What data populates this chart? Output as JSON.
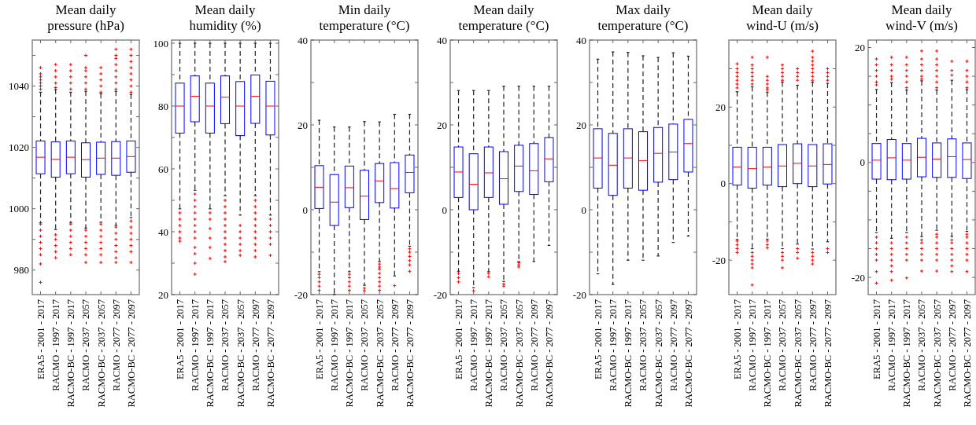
{
  "chart_data": [
    {
      "type": "box",
      "title": "Mean daily\npressure (hPa)",
      "categories": [
        "ERA5 - 2001 - 2017",
        "RACMO - 1997 - 2017",
        "RACMO-BC - 1997 - 2017",
        "RACMO - 2037 - 2057",
        "RACMO-BC - 2037 - 2057",
        "RACMO - 2077 - 2097",
        "RACMO-BC - 2077 - 2097"
      ],
      "color": "#0000ff",
      "marker": "cross",
      "ylim": [
        972,
        1055
      ],
      "yticks": [
        980,
        {
          "value": 990,
          "label": null
        },
        1000,
        {
          "value": 1010,
          "label": null
        },
        1020,
        {
          "value": 1030,
          "label": null
        },
        1040,
        {
          "value": 1050,
          "label": null
        }
      ],
      "boxes": [
        {
          "low": 995.4,
          "q1": 1011.4,
          "median": 1016.8,
          "q3": 1022.1,
          "high": 1038,
          "outliers": [
            1039,
            1040,
            1041,
            1042,
            1043,
            1044,
            1046,
            995,
            993,
            991,
            989,
            987,
            985,
            982,
            976
          ]
        },
        {
          "low": 993.2,
          "q1": 1010.3,
          "median": 1016.1,
          "q3": 1021.8,
          "high": 1038.9,
          "outliers": [
            1039.5,
            1041,
            1043,
            1045,
            1047,
            991.5,
            990,
            988,
            986,
            984
          ]
        },
        {
          "low": 995.4,
          "q1": 1011.4,
          "median": 1016.8,
          "q3": 1022.1,
          "high": 1038,
          "outliers": [
            1039,
            1041,
            1043,
            1045,
            1047,
            995,
            993,
            991,
            989,
            987,
            985
          ]
        },
        {
          "low": 993.7,
          "q1": 1010.3,
          "median": 1016,
          "q3": 1021.5,
          "high": 1038.3,
          "outliers": [
            1039,
            1041,
            1043,
            1045,
            1046,
            1050,
            993,
            991,
            989,
            987,
            985,
            982.5
          ]
        },
        {
          "low": 995.6,
          "q1": 1011.2,
          "median": 1016.5,
          "q3": 1021.7,
          "high": 1037.5,
          "outliers": [
            1038,
            1040,
            1042,
            1044,
            1046,
            995,
            993,
            991,
            989,
            987,
            985,
            982.5
          ]
        },
        {
          "low": 994.6,
          "q1": 1010.9,
          "median": 1016.5,
          "q3": 1021.9,
          "high": 1038.3,
          "outliers": [
            1039,
            1041,
            1043,
            1045,
            1047,
            1049,
            1050,
            1052,
            994,
            992,
            990,
            988,
            986,
            984,
            982.5
          ]
        },
        {
          "low": 997.1,
          "q1": 1011.9,
          "median": 1017,
          "q3": 1022.1,
          "high": 1037.3,
          "outliers": [
            1038,
            1040,
            1042,
            1044,
            1046,
            1048,
            1050,
            1052,
            996,
            994,
            992,
            990,
            988,
            986,
            982.5
          ]
        }
      ]
    },
    {
      "type": "box",
      "title": "Mean daily\nhumidity (%)",
      "categories": [
        "ERA5 - 2001 - 2017",
        "RACMO - 1997 - 2017",
        "RACMO-BC - 1997 - 2017",
        "RACMO - 2037 - 2057",
        "RACMO-BC - 2037 - 2057",
        "RACMO - 2077 - 2097",
        "RACMO-BC - 2077 - 2097"
      ],
      "color": "#0000ff",
      "marker": "cross",
      "ylim": [
        20,
        101
      ],
      "yticks": [
        20,
        {
          "value": 30,
          "label": null
        },
        40,
        {
          "value": 50,
          "label": null
        },
        60,
        {
          "value": 70,
          "label": null
        },
        80,
        {
          "value": 90,
          "label": null
        },
        100
      ],
      "boxes": [
        {
          "low": 47.3,
          "q1": 71.4,
          "median": 80,
          "q3": 87.3,
          "high": 100,
          "outliers": [
            46,
            44,
            42,
            40,
            38,
            37
          ]
        },
        {
          "low": 53.2,
          "q1": 75,
          "median": 83.1,
          "q3": 89.6,
          "high": 100,
          "outliers": [
            52,
            50,
            48,
            46,
            44,
            42,
            40,
            38,
            35,
            33,
            30,
            26.5
          ]
        },
        {
          "low": 47.3,
          "q1": 71.4,
          "median": 80,
          "q3": 87.3,
          "high": 100,
          "outliers": [
            46,
            44,
            41,
            38,
            35,
            31.5
          ]
        },
        {
          "low": 51.5,
          "q1": 74.4,
          "median": 82.8,
          "q3": 89.6,
          "high": 100,
          "outliers": [
            50,
            48,
            46,
            44,
            42,
            40,
            38,
            36,
            34,
            32,
            30.5
          ]
        },
        {
          "low": 45.3,
          "q1": 70.6,
          "median": 80,
          "q3": 87.8,
          "high": 100,
          "outliers": [
            42,
            40,
            38,
            36,
            34,
            32.5
          ]
        },
        {
          "low": 51.5,
          "q1": 74.5,
          "median": 83.1,
          "q3": 89.9,
          "high": 100,
          "outliers": [
            50,
            48,
            46,
            44,
            42,
            40,
            38,
            36,
            34,
            32
          ]
        },
        {
          "low": 45.3,
          "q1": 70.8,
          "median": 80,
          "q3": 87.9,
          "high": 100,
          "outliers": [
            44,
            42,
            40,
            38,
            36,
            32.5
          ]
        }
      ]
    },
    {
      "type": "box",
      "title": "Min daily\ntemperature (°C)",
      "categories": [
        "ERA5 - 2001 - 2017",
        "RACMO - 1997 - 2017",
        "RACMO-BC - 1997 - 2017",
        "RACMO - 2037 - 2057",
        "RACMO-BC - 2037 - 2057",
        "RACMO - 2077 - 2097",
        "RACMO-BC - 2077 - 2097"
      ],
      "color": "#0000ff",
      "marker": "cross",
      "ylim": [
        -20,
        40
      ],
      "yticks": [
        -20,
        {
          "value": -10,
          "label": null
        },
        0,
        {
          "value": 10,
          "label": null
        },
        20,
        {
          "value": 30,
          "label": null
        },
        40
      ],
      "boxes": [
        {
          "low": -14.6,
          "q1": 0.3,
          "median": 5.3,
          "q3": 10.4,
          "high": 21.1,
          "outliers": [
            -15.2,
            -16,
            -17,
            -18,
            -19
          ]
        },
        {
          "low": -20,
          "q1": -3.7,
          "median": 1.8,
          "q3": 8.3,
          "high": 19.5
        },
        {
          "low": -14.6,
          "q1": 0.5,
          "median": 5.2,
          "q3": 10.3,
          "high": 19.5,
          "outliers": [
            -15.2,
            -16,
            -17,
            -18,
            -19
          ]
        },
        {
          "low": -17.8,
          "q1": -2.3,
          "median": 3.2,
          "q3": 9.3,
          "high": 20.8,
          "outliers": [
            -18.5,
            -19.1
          ]
        },
        {
          "low": -12.2,
          "q1": 1.7,
          "median": 6.8,
          "q3": 10.9,
          "high": 20.7,
          "outliers": [
            -12.8,
            -13.5,
            -14,
            -15,
            -16,
            -17,
            -18,
            -19
          ]
        },
        {
          "low": -15.6,
          "q1": 0.4,
          "median": 5,
          "q3": 11.1,
          "high": 22.5,
          "outliers": [
            -17.9
          ]
        },
        {
          "low": -8.6,
          "q1": 4,
          "median": 8.8,
          "q3": 12.9,
          "high": 22.5,
          "outliers": [
            -9.2,
            -10,
            -11,
            -12,
            -13,
            -14.5
          ]
        }
      ]
    },
    {
      "type": "box",
      "title": "Mean daily\ntemperature (°C)",
      "categories": [
        "ERA5 - 2001 - 2017",
        "RACMO - 1997 - 2017",
        "RACMO-BC - 1997 - 2017",
        "RACMO - 2037 - 2057",
        "RACMO-BC - 2037 - 2057",
        "RACMO - 2077 - 2097",
        "RACMO-BC - 2077 - 2097"
      ],
      "color": "#0000ff",
      "marker": "cross",
      "ylim": [
        -20,
        40
      ],
      "yticks": [
        -20,
        {
          "value": -10,
          "label": null
        },
        0,
        {
          "value": 10,
          "label": null
        },
        20,
        {
          "value": 30,
          "label": null
        },
        40
      ],
      "boxes": [
        {
          "low": -14.5,
          "q1": 2.9,
          "median": 8.9,
          "q3": 14.8,
          "high": 28.1,
          "outliers": [
            -15,
            -16,
            -17
          ]
        },
        {
          "low": -18.4,
          "q1": 0,
          "median": 6,
          "q3": 13.2,
          "high": 28.1,
          "outliers": [
            -19.1
          ]
        },
        {
          "low": -14.6,
          "q1": 2.9,
          "median": 8.7,
          "q3": 14.8,
          "high": 28.1,
          "outliers": [
            -15,
            -15.8
          ]
        },
        {
          "low": -16.9,
          "q1": 1.3,
          "median": 7.3,
          "q3": 13.7,
          "high": 29.1,
          "outliers": [
            -17.5,
            -18
          ]
        },
        {
          "low": -12.2,
          "q1": 4.3,
          "median": 10.3,
          "q3": 15.2,
          "high": 29.1,
          "outliers": [
            -12.5,
            -13,
            -13.5
          ]
        },
        {
          "low": -12.2,
          "q1": 3.6,
          "median": 9.2,
          "q3": 15.6,
          "high": 29.1
        },
        {
          "low": -8.4,
          "q1": 6.6,
          "median": 12,
          "q3": 17,
          "high": 29.1
        }
      ]
    },
    {
      "type": "box",
      "title": "Max daily\ntemperature (°C)",
      "categories": [
        "ERA5 - 2001 - 2017",
        "RACMO - 1997 - 2017",
        "RACMO-BC - 1997 - 2017",
        "RACMO - 2037 - 2057",
        "RACMO-BC - 2037 - 2057",
        "RACMO - 2077 - 2097",
        "RACMO-BC - 2077 - 2097"
      ],
      "color": "#0000ff",
      "marker": "cross",
      "ylim": [
        -20,
        40
      ],
      "yticks": [
        -20,
        {
          "value": -10,
          "label": null
        },
        0,
        {
          "value": 10,
          "label": null
        },
        20,
        {
          "value": 30,
          "label": null
        },
        40
      ],
      "boxes": [
        {
          "low": -15.1,
          "q1": 5.1,
          "median": 12.2,
          "q3": 19.1,
          "high": 35.5
        },
        {
          "low": -17.6,
          "q1": 3.4,
          "median": 10.5,
          "q3": 18,
          "high": 37.2
        },
        {
          "low": -11.9,
          "q1": 5.1,
          "median": 12.2,
          "q3": 19.1,
          "high": 37.1
        },
        {
          "low": -11.9,
          "q1": 4.6,
          "median": 11.6,
          "q3": 18.4,
          "high": 36.3
        },
        {
          "low": -10.9,
          "q1": 6.5,
          "median": 13.3,
          "q3": 19.4,
          "high": 35.9
        },
        {
          "low": -7.7,
          "q1": 7.1,
          "median": 13.6,
          "q3": 20.2,
          "high": 37
        },
        {
          "low": -6.2,
          "q1": 8.9,
          "median": 15.6,
          "q3": 21.3,
          "high": 36.2
        }
      ]
    },
    {
      "type": "box",
      "title": "Mean daily\nwind-U (m/s)",
      "categories": [
        "ERA5 - 2001 - 2017",
        "RACMO - 1997 - 2017",
        "RACMO-BC - 1997 - 2017",
        "RACMO - 2037 - 2057",
        "RACMO-BC - 2037 - 2057",
        "RACMO - 2077 - 2097",
        "RACMO-BC - 2077 - 2097"
      ],
      "color": "#0000ff",
      "marker": "cross",
      "ylim": [
        -29,
        37.5
      ],
      "yticks": [
        -20,
        {
          "value": -10,
          "label": null
        },
        0,
        {
          "value": 10,
          "label": null
        },
        20,
        {
          "value": 30,
          "label": null
        }
      ],
      "boxes": [
        {
          "low": -14.6,
          "q1": -0.4,
          "median": 4.3,
          "q3": 9.5,
          "high": 24,
          "outliers": [
            25,
            26,
            27,
            28,
            29,
            30,
            31.3,
            -15,
            -16,
            -17,
            -18
          ]
        },
        {
          "low": -17,
          "q1": -1.2,
          "median": 3.9,
          "q3": 9.5,
          "high": 25.3,
          "outliers": [
            26,
            27,
            28,
            29,
            30,
            31,
            33,
            -18,
            -19,
            -20,
            -21,
            -22,
            -26.5
          ]
        },
        {
          "low": -14.5,
          "q1": -0.4,
          "median": 4.3,
          "q3": 9.5,
          "high": 23.9,
          "outliers": [
            24.5,
            25,
            26,
            27,
            28,
            33,
            -15,
            -16,
            -16.8
          ]
        },
        {
          "low": -17,
          "q1": -0.8,
          "median": 4.6,
          "q3": 10.2,
          "high": 26.5,
          "outliers": [
            27,
            28,
            29,
            30,
            31,
            -18,
            -19,
            -20,
            -22
          ]
        },
        {
          "low": -15.8,
          "q1": 0,
          "median": 5.3,
          "q3": 10.4,
          "high": 25.7,
          "outliers": [
            27,
            28,
            29,
            30,
            -17,
            -18,
            -19.5
          ]
        },
        {
          "low": -17.1,
          "q1": -0.8,
          "median": 4.6,
          "q3": 10.2,
          "high": 26.5,
          "outliers": [
            27,
            28,
            29,
            30,
            31,
            32,
            33,
            34.6,
            -18,
            -19,
            -20,
            -21
          ]
        },
        {
          "low": -15.2,
          "q1": -0.1,
          "median": 5,
          "q3": 10.4,
          "high": 26.2,
          "outliers": [
            27,
            28,
            29,
            30,
            -17,
            -18
          ]
        }
      ]
    },
    {
      "type": "box",
      "title": "Mean daily\nwind-V (m/s)",
      "categories": [
        "ERA5 - 2001 - 2017",
        "RACMO - 1997 - 2017",
        "RACMO-BC - 1997 - 2017",
        "RACMO - 2037 - 2057",
        "RACMO-BC - 2037 - 2057",
        "RACMO - 2077 - 2097",
        "RACMO-BC - 2077 - 2097"
      ],
      "color": "#0000ff",
      "marker": "cross",
      "ylim": [
        -23,
        21.3
      ],
      "yticks": [
        -20,
        {
          "value": -15,
          "label": null
        },
        {
          "value": -10,
          "label": null
        },
        {
          "value": -5,
          "label": null
        },
        0,
        {
          "value": 5,
          "label": null
        },
        {
          "value": 10,
          "label": null
        },
        {
          "value": 15,
          "label": null
        },
        20
      ],
      "boxes": [
        {
          "low": -12.2,
          "q1": -2.9,
          "median": 0.4,
          "q3": 3.3,
          "high": 12.7,
          "outliers": [
            13.5,
            14,
            15,
            16,
            17,
            18,
            -13,
            -14,
            -15,
            -16,
            -17,
            -19,
            -21
          ]
        },
        {
          "low": -13.2,
          "q1": -3,
          "median": 0.8,
          "q3": 4,
          "high": 13.9,
          "outliers": [
            14.5,
            15,
            16,
            17,
            18.3,
            -14,
            -15,
            -16,
            -17,
            -18,
            -19,
            -20.5
          ]
        },
        {
          "low": -12.2,
          "q1": -2.9,
          "median": 0.4,
          "q3": 3.3,
          "high": 12.6,
          "outliers": [
            13,
            14,
            15,
            16,
            17,
            18.3,
            -13,
            -14,
            -15,
            -16,
            -17,
            -20.1
          ]
        },
        {
          "low": -12.9,
          "q1": -2.5,
          "median": 0.9,
          "q3": 4.2,
          "high": 14.2,
          "outliers": [
            14.5,
            15,
            16,
            17,
            18,
            19.4,
            -13.5,
            -14,
            -15,
            -16,
            -17,
            -18.9
          ]
        },
        {
          "low": -11.8,
          "q1": -2.6,
          "median": 0.6,
          "q3": 3.4,
          "high": 12.6,
          "outliers": [
            13,
            14,
            15,
            16,
            17,
            18,
            19.4,
            -12.5,
            -13,
            -14,
            -15,
            -16,
            -17,
            -18.9
          ]
        },
        {
          "low": -12.9,
          "q1": -2.6,
          "median": 1,
          "q3": 4.1,
          "high": 14.3,
          "outliers": [
            15.2,
            16,
            17.6,
            -13.5,
            -14,
            -15,
            -16,
            -17,
            -18,
            -19
          ]
        },
        {
          "low": -12,
          "q1": -2.8,
          "median": 0.5,
          "q3": 3.4,
          "high": 12.7,
          "outliers": [
            13,
            14,
            15,
            16,
            17.6,
            -12.5,
            -13,
            -14,
            -15,
            -16,
            -17,
            -19
          ]
        }
      ]
    }
  ]
}
